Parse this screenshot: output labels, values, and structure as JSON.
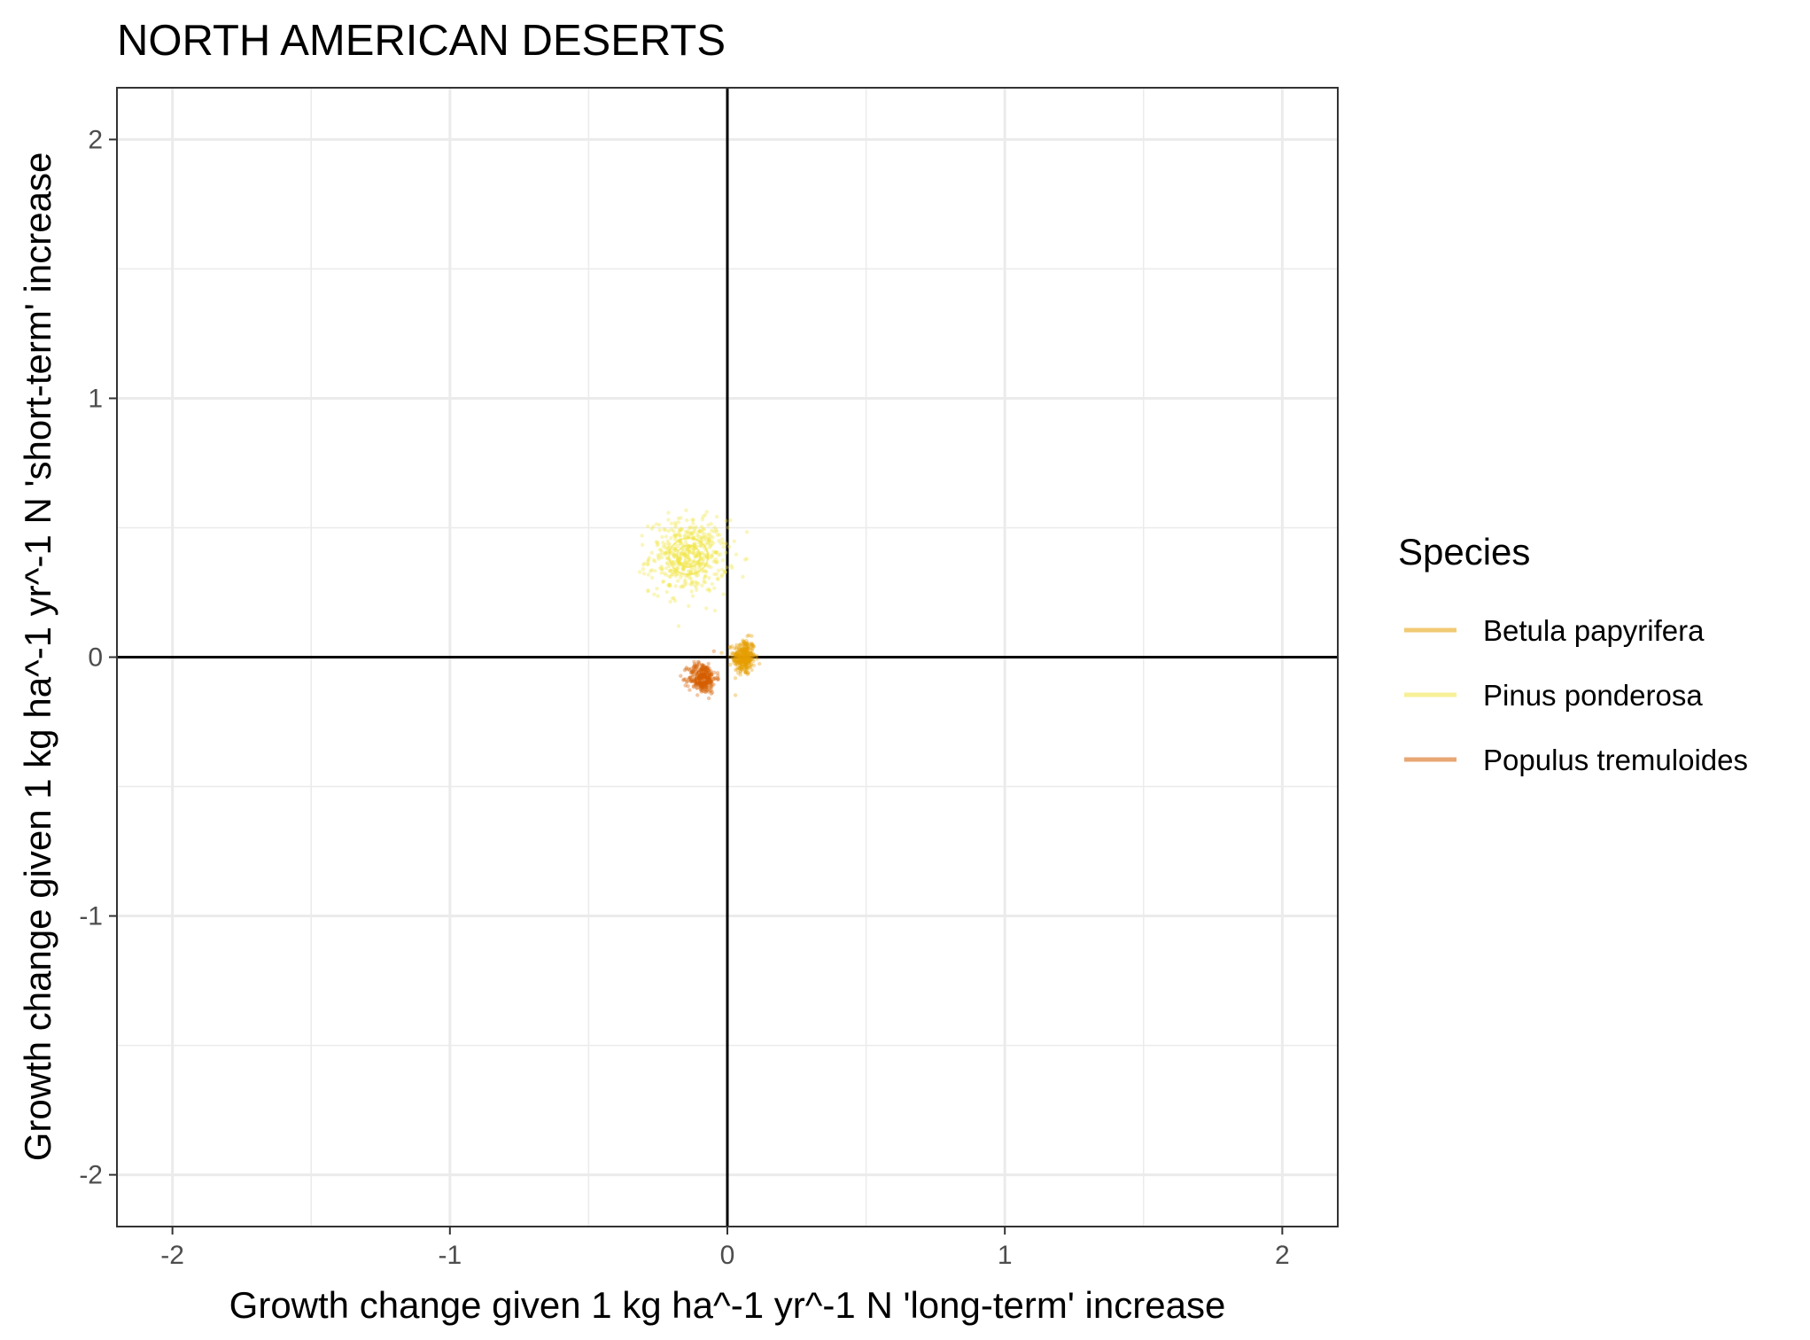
{
  "chart_data": {
    "type": "scatter",
    "title": "NORTH AMERICAN DESERTS",
    "xlabel": "Growth change given 1 kg ha^-1 yr^-1 N 'long-term' increase",
    "ylabel": "Growth change given 1 kg ha^-1 yr^-1 N 'short-term' increase",
    "xlim": [
      -2.2,
      2.2
    ],
    "ylim": [
      -2.2,
      2.2
    ],
    "x_ticks": [
      -2,
      -1,
      0,
      1,
      2
    ],
    "y_ticks": [
      -2,
      -1,
      0,
      1,
      2
    ],
    "x_tick_labels": [
      "-2",
      "-1",
      "0",
      "1",
      "2"
    ],
    "y_tick_labels": [
      "-2",
      "-1",
      "0",
      "1",
      "2"
    ],
    "grid": true,
    "reference_lines": {
      "x": 0,
      "y": 0
    },
    "legend": {
      "title": "Species",
      "position": "right"
    },
    "series": [
      {
        "name": "Betula papyrifera",
        "color": "#E69F00",
        "center": [
          0.06,
          0.0
        ],
        "spread": [
          0.02,
          0.035
        ],
        "n_points": 300
      },
      {
        "name": "Pinus ponderosa",
        "color": "#F0E442",
        "center": [
          -0.14,
          0.39
        ],
        "spread": [
          0.07,
          0.07
        ],
        "n_points": 500
      },
      {
        "name": "Populus tremuloides",
        "color": "#D55E00",
        "center": [
          -0.09,
          -0.08
        ],
        "spread": [
          0.025,
          0.03
        ],
        "n_points": 300
      }
    ]
  }
}
